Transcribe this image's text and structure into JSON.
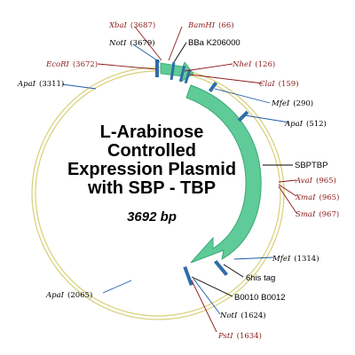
{
  "plasmid": {
    "title_lines": [
      "L-Arabinose",
      "Controlled",
      "Expression Plasmid",
      "with SBP - TBP"
    ],
    "size_label": "3692 bp"
  },
  "colors": {
    "backbone": "#d8cf78",
    "arrow": "#5ecb98",
    "arrow_edge": "#3aa874",
    "feature_block": "#2f6da8",
    "site_red": "#8b1a1a",
    "site_blue": "#1f5aa6",
    "line_gray": "#7ba7d1"
  },
  "sites": [
    {
      "id": "xbai-3687",
      "name": "XbaI",
      "pos": "(3687)",
      "color": "red"
    },
    {
      "id": "bamhi-66",
      "name": "BamHI",
      "pos": "(66)",
      "color": "red"
    },
    {
      "id": "noti-3679",
      "name": "NotI",
      "pos": "(3679)",
      "color": "black"
    },
    {
      "id": "ecori-3672",
      "name": "EcoRI",
      "pos": "(3672)",
      "color": "red"
    },
    {
      "id": "nhei-126",
      "name": "NheI",
      "pos": "(126)",
      "color": "red"
    },
    {
      "id": "clai-159",
      "name": "ClaI",
      "pos": "(159)",
      "color": "red"
    },
    {
      "id": "apai-3311",
      "name": "ApaI",
      "pos": "(3311)",
      "color": "black"
    },
    {
      "id": "mfei-290",
      "name": "MfeI",
      "pos": "(290)",
      "color": "black"
    },
    {
      "id": "apai-512",
      "name": "ApaI",
      "pos": "(512)",
      "color": "black"
    },
    {
      "id": "avai-965",
      "name": "AvaI",
      "pos": "(965)",
      "color": "red"
    },
    {
      "id": "xmai-965",
      "name": "XmaI",
      "pos": "(965)",
      "color": "red"
    },
    {
      "id": "smai-967",
      "name": "SmaI",
      "pos": "(967)",
      "color": "red"
    },
    {
      "id": "mfei-1314",
      "name": "MfeI",
      "pos": "(1314)",
      "color": "black"
    },
    {
      "id": "apai-2065",
      "name": "ApaI",
      "pos": "(2065)",
      "color": "black"
    },
    {
      "id": "noti-1624",
      "name": "NotI",
      "pos": "(1624)",
      "color": "black"
    },
    {
      "id": "psti-1634",
      "name": "PstI",
      "pos": "(1634)",
      "color": "red"
    }
  ],
  "features": [
    {
      "id": "bba-k206000",
      "label": "BBa K206000"
    },
    {
      "id": "sbptbp",
      "label": "SBPTBP"
    },
    {
      "id": "6his-tag",
      "label": "6his tag"
    },
    {
      "id": "b0010-b0012",
      "label": "B0010 B0012"
    }
  ]
}
